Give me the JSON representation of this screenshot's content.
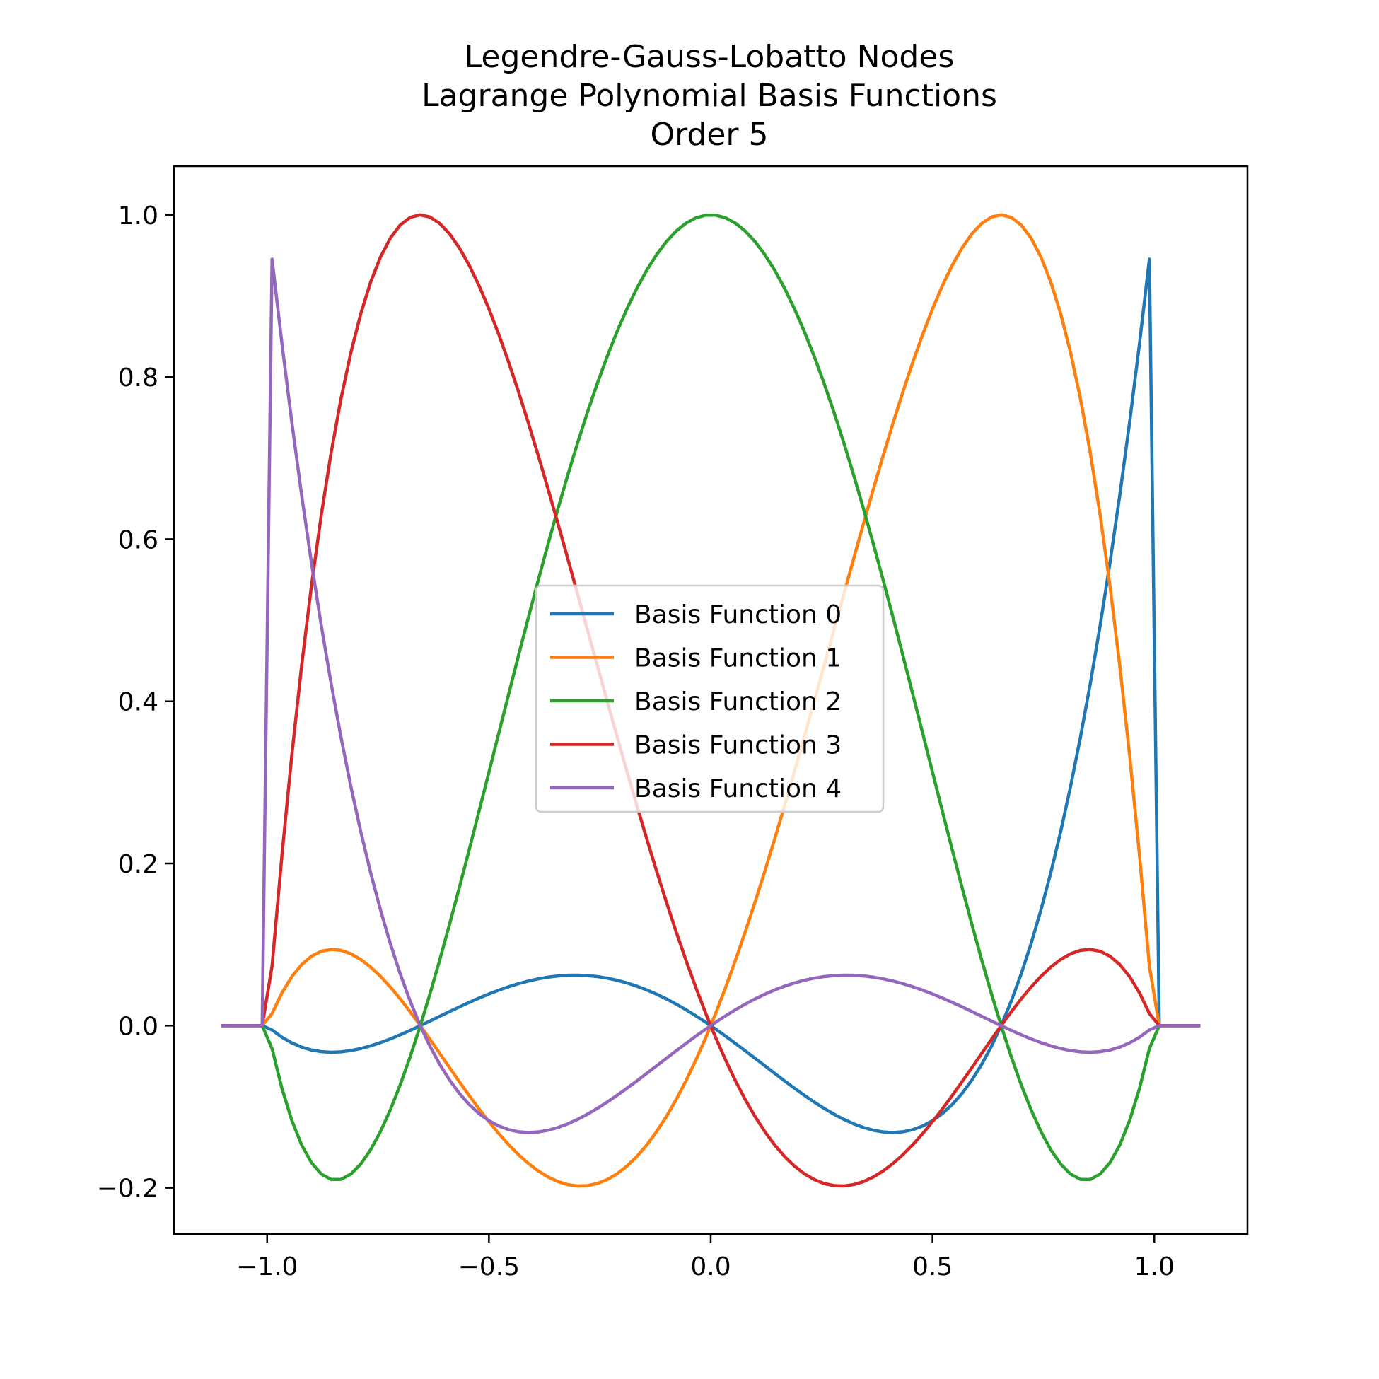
{
  "chart_data": {
    "type": "line",
    "title_lines": [
      "Legendre-Gauss-Lobatto Nodes",
      "Lagrange Polynomial Basis Functions",
      "Order 5"
    ],
    "xlabel": "",
    "ylabel": "",
    "xlim": [
      -1.21,
      1.21
    ],
    "ylim": [
      -0.257,
      1.06
    ],
    "x_ticks": [
      -1.0,
      -0.5,
      0.0,
      0.5,
      1.0
    ],
    "x_tick_labels": [
      "−1.0",
      "−0.5",
      "0.0",
      "0.5",
      "1.0"
    ],
    "y_ticks": [
      -0.2,
      0.0,
      0.2,
      0.4,
      0.6,
      0.8,
      1.0
    ],
    "y_tick_labels": [
      "−0.2",
      "0.0",
      "0.2",
      "0.4",
      "0.6",
      "0.8",
      "1.0"
    ],
    "domain": [
      -1.1,
      1.1
    ],
    "nodes": [
      -1.0,
      -0.6547,
      0.0,
      0.6547,
      1.0
    ],
    "grid": false,
    "legend_position": "center",
    "series": [
      {
        "name": "Basis Function 0",
        "color": "#1f77b4",
        "node_index": 4
      },
      {
        "name": "Basis Function 1",
        "color": "#ff7f0e",
        "node_index": 3
      },
      {
        "name": "Basis Function 2",
        "color": "#2ca02c",
        "node_index": 2
      },
      {
        "name": "Basis Function 3",
        "color": "#d62728",
        "node_index": 1
      },
      {
        "name": "Basis Function 4",
        "color": "#9467bd",
        "node_index": 0
      }
    ]
  }
}
